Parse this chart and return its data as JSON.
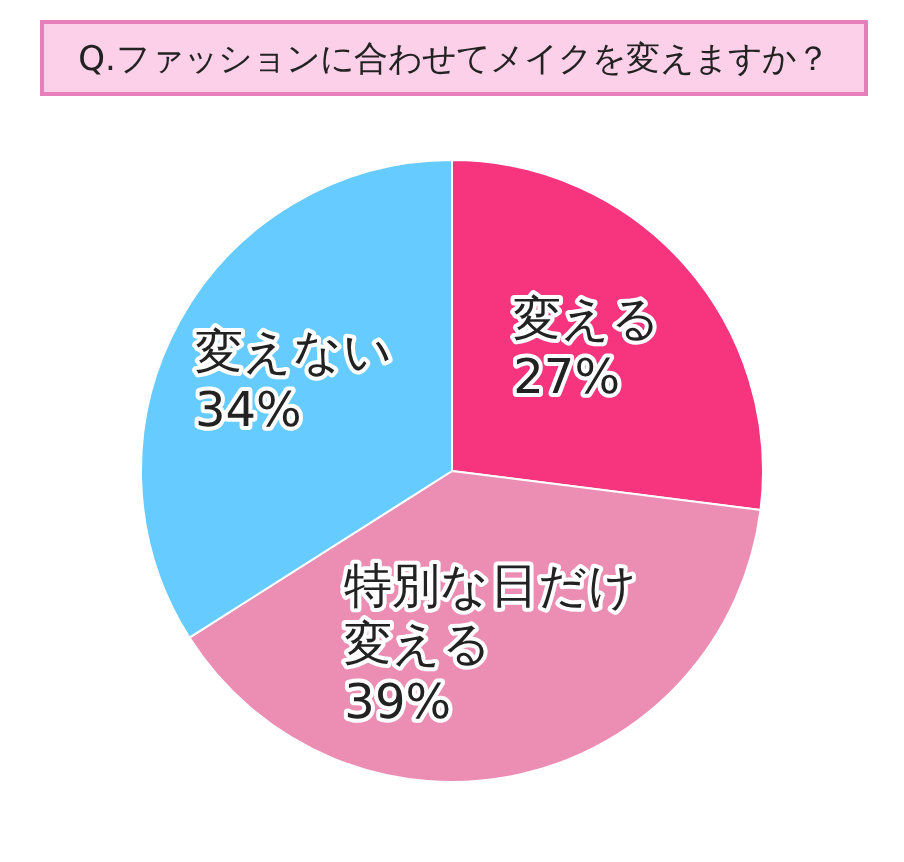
{
  "chart_data": {
    "type": "pie",
    "title": "Q.ファッションに合わせてメイクを変えますか？",
    "categories": [
      "変える",
      "特別な日だけ変える",
      "変えない"
    ],
    "values": [
      27,
      39,
      34
    ],
    "colors": [
      "#f7357f",
      "#ec8db4",
      "#66ccff"
    ],
    "value_labels": [
      "27%",
      "39%",
      "34%"
    ],
    "legend": false
  }
}
